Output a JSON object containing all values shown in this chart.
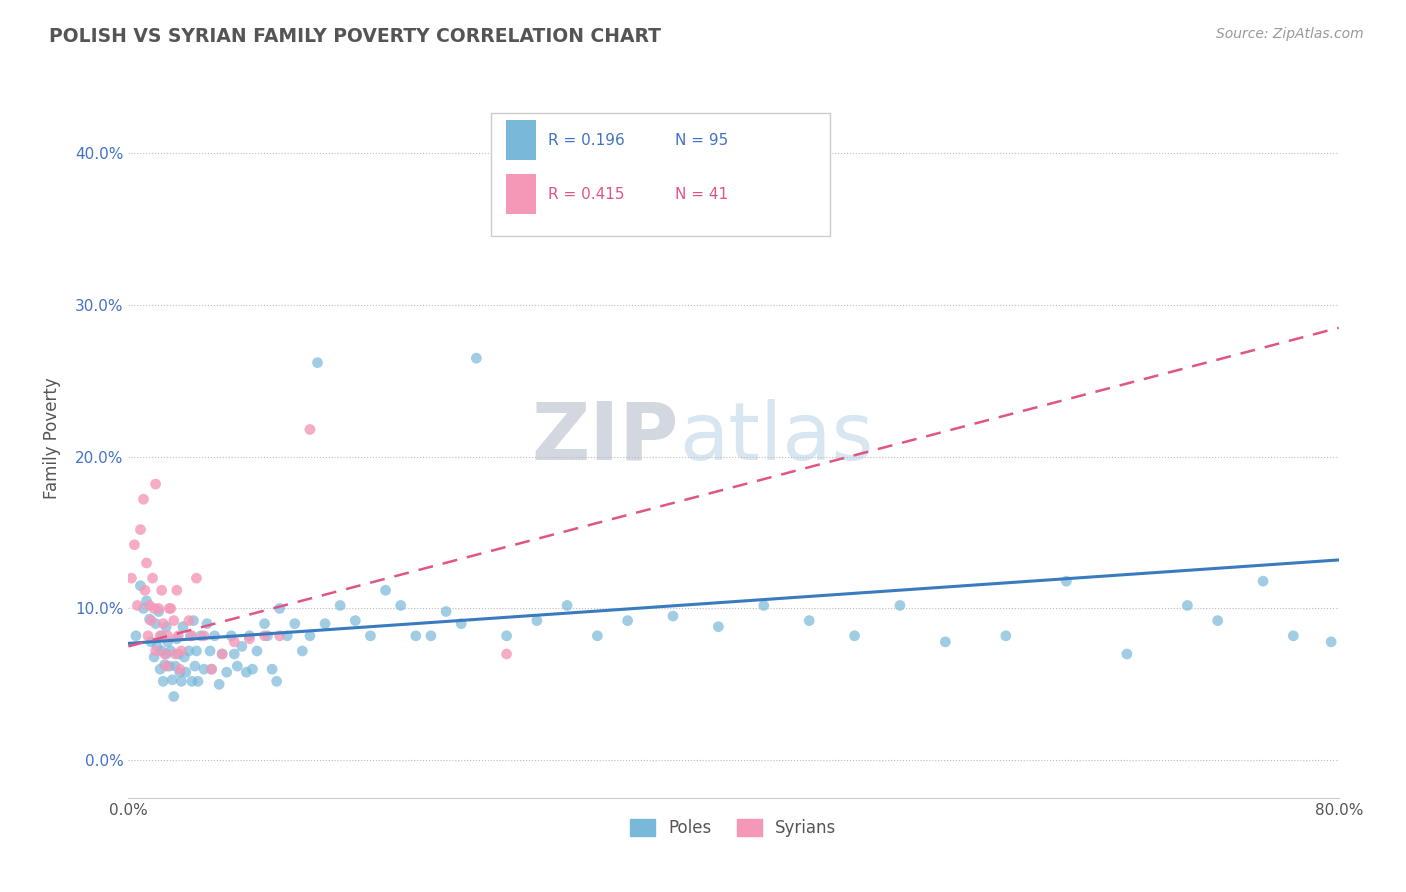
{
  "title": "POLISH VS SYRIAN FAMILY POVERTY CORRELATION CHART",
  "source": "Source: ZipAtlas.com",
  "ylabel": "Family Poverty",
  "xlim": [
    0.0,
    0.8
  ],
  "ylim": [
    -0.025,
    0.45
  ],
  "yticks": [
    0.0,
    0.1,
    0.2,
    0.3,
    0.4
  ],
  "ytick_labels": [
    "0.0%",
    "10.0%",
    "20.0%",
    "30.0%",
    "40.0%"
  ],
  "xticks": [
    0.0,
    0.1,
    0.2,
    0.3,
    0.4,
    0.5,
    0.6,
    0.7,
    0.8
  ],
  "xtick_labels": [
    "0.0%",
    "",
    "",
    "",
    "",
    "",
    "",
    "",
    "80.0%"
  ],
  "poles_color": "#7ab8d9",
  "syrians_color": "#f598b8",
  "trend_poles_color": "#3a7bbf",
  "trend_syrians_color": "#e05585",
  "poles_R": 0.196,
  "poles_N": 95,
  "syrians_R": 0.415,
  "syrians_N": 41,
  "watermark_zip": "ZIP",
  "watermark_atlas": "atlas",
  "poles_x": [
    0.005,
    0.008,
    0.01,
    0.012,
    0.014,
    0.015,
    0.017,
    0.018,
    0.019,
    0.02,
    0.021,
    0.022,
    0.022,
    0.023,
    0.024,
    0.025,
    0.025,
    0.026,
    0.027,
    0.028,
    0.029,
    0.03,
    0.031,
    0.032,
    0.033,
    0.034,
    0.035,
    0.036,
    0.037,
    0.038,
    0.04,
    0.041,
    0.042,
    0.043,
    0.044,
    0.045,
    0.046,
    0.048,
    0.05,
    0.052,
    0.054,
    0.055,
    0.057,
    0.06,
    0.062,
    0.065,
    0.068,
    0.07,
    0.072,
    0.075,
    0.078,
    0.08,
    0.082,
    0.085,
    0.09,
    0.092,
    0.095,
    0.098,
    0.1,
    0.105,
    0.11,
    0.115,
    0.12,
    0.125,
    0.13,
    0.14,
    0.15,
    0.16,
    0.17,
    0.18,
    0.19,
    0.2,
    0.21,
    0.22,
    0.23,
    0.25,
    0.27,
    0.29,
    0.31,
    0.33,
    0.36,
    0.39,
    0.42,
    0.45,
    0.48,
    0.51,
    0.54,
    0.58,
    0.62,
    0.66,
    0.7,
    0.72,
    0.75,
    0.77,
    0.795
  ],
  "poles_y": [
    0.082,
    0.115,
    0.1,
    0.105,
    0.093,
    0.078,
    0.068,
    0.09,
    0.075,
    0.098,
    0.06,
    0.072,
    0.082,
    0.052,
    0.063,
    0.088,
    0.07,
    0.078,
    0.062,
    0.072,
    0.053,
    0.042,
    0.062,
    0.08,
    0.07,
    0.058,
    0.052,
    0.088,
    0.068,
    0.058,
    0.072,
    0.082,
    0.052,
    0.092,
    0.062,
    0.072,
    0.052,
    0.082,
    0.06,
    0.09,
    0.072,
    0.06,
    0.082,
    0.05,
    0.07,
    0.058,
    0.082,
    0.07,
    0.062,
    0.075,
    0.058,
    0.082,
    0.06,
    0.072,
    0.09,
    0.082,
    0.06,
    0.052,
    0.1,
    0.082,
    0.09,
    0.072,
    0.082,
    0.262,
    0.09,
    0.102,
    0.092,
    0.082,
    0.112,
    0.102,
    0.082,
    0.082,
    0.098,
    0.09,
    0.265,
    0.082,
    0.092,
    0.102,
    0.082,
    0.092,
    0.095,
    0.088,
    0.102,
    0.092,
    0.082,
    0.102,
    0.078,
    0.082,
    0.118,
    0.07,
    0.102,
    0.092,
    0.118,
    0.082,
    0.078
  ],
  "syrians_x": [
    0.002,
    0.004,
    0.006,
    0.008,
    0.01,
    0.011,
    0.012,
    0.013,
    0.014,
    0.015,
    0.016,
    0.017,
    0.018,
    0.018,
    0.02,
    0.021,
    0.022,
    0.023,
    0.024,
    0.025,
    0.026,
    0.027,
    0.028,
    0.03,
    0.031,
    0.032,
    0.033,
    0.034,
    0.035,
    0.04,
    0.042,
    0.045,
    0.05,
    0.055,
    0.062,
    0.07,
    0.08,
    0.09,
    0.1,
    0.12,
    0.25
  ],
  "syrians_y": [
    0.12,
    0.142,
    0.102,
    0.152,
    0.172,
    0.112,
    0.13,
    0.082,
    0.102,
    0.092,
    0.12,
    0.1,
    0.072,
    0.182,
    0.1,
    0.082,
    0.112,
    0.09,
    0.07,
    0.062,
    0.082,
    0.1,
    0.1,
    0.092,
    0.07,
    0.112,
    0.082,
    0.06,
    0.072,
    0.092,
    0.082,
    0.12,
    0.082,
    0.06,
    0.07,
    0.078,
    0.08,
    0.082,
    0.082,
    0.218,
    0.07
  ],
  "trend_poles_start_y": 0.077,
  "trend_poles_end_y": 0.132,
  "trend_syrians_start_y": 0.075,
  "trend_syrians_end_y": 0.285
}
